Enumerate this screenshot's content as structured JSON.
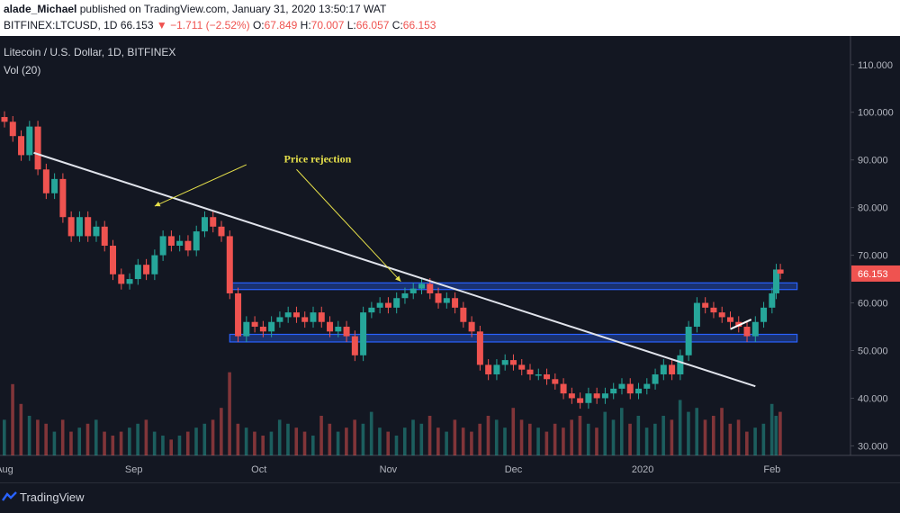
{
  "header": {
    "publisher": "alade_Michael",
    "published_text": "published on TradingView.com, January 31, 2020 13:50:17 WAT",
    "symbol": "BITFINEX:LTCUSD, 1D",
    "last": "66.153",
    "change_arrow": "▼",
    "change": "−1.711 (−2.52%)",
    "ohlc": [
      {
        "label": "O:",
        "value": "67.849"
      },
      {
        "label": "H:",
        "value": "70.007"
      },
      {
        "label": "L:",
        "value": "66.057"
      },
      {
        "label": "C:",
        "value": "66.153"
      }
    ]
  },
  "legend": {
    "title": "Litecoin / U.S. Dollar, 1D, BITFINEX",
    "volume": "Vol (20)"
  },
  "footer": {
    "brand": "TradingView"
  },
  "colors": {
    "up": "#26a69a",
    "down": "#ef5350",
    "zone_fill": "#2962ff",
    "trendline": "#e0e3eb",
    "annotation": "#e6e04a",
    "price_label_bg": "#ef5350"
  },
  "chart_data": {
    "type": "candlestick",
    "title": "Litecoin / U.S. Dollar, 1D, BITFINEX",
    "ylim": [
      28,
      116
    ],
    "y_ticks": [
      "110.000",
      "100.000",
      "90.000",
      "80.000",
      "70.000",
      "60.000",
      "50.000",
      "40.000",
      "30.000"
    ],
    "x_ticks": [
      "Aug",
      "Sep",
      "Oct",
      "Nov",
      "Dec",
      "2020",
      "Feb"
    ],
    "x_range_days": [
      0,
      187
    ],
    "x_tick_days": [
      0,
      31,
      61,
      92,
      122,
      153,
      184
    ],
    "last_price": "66.153",
    "series": [
      {
        "kind": "close",
        "points": [
          [
            0,
            98
          ],
          [
            2,
            95
          ],
          [
            4,
            91
          ],
          [
            6,
            97
          ],
          [
            8,
            88
          ],
          [
            10,
            83
          ],
          [
            12,
            86
          ],
          [
            14,
            78
          ],
          [
            16,
            74
          ],
          [
            18,
            78
          ],
          [
            20,
            74
          ],
          [
            22,
            76
          ],
          [
            24,
            72
          ],
          [
            26,
            66
          ],
          [
            28,
            64
          ],
          [
            30,
            65
          ],
          [
            32,
            68
          ],
          [
            34,
            66
          ],
          [
            36,
            70
          ],
          [
            38,
            74
          ],
          [
            40,
            72
          ],
          [
            42,
            73
          ],
          [
            44,
            71
          ],
          [
            46,
            75
          ],
          [
            48,
            78
          ],
          [
            50,
            76
          ],
          [
            52,
            74
          ],
          [
            54,
            62
          ],
          [
            56,
            53
          ],
          [
            58,
            56
          ],
          [
            60,
            55
          ],
          [
            62,
            54
          ],
          [
            64,
            56
          ],
          [
            66,
            57
          ],
          [
            68,
            58
          ],
          [
            70,
            57
          ],
          [
            72,
            56
          ],
          [
            74,
            58
          ],
          [
            76,
            56
          ],
          [
            78,
            54
          ],
          [
            80,
            55
          ],
          [
            82,
            53
          ],
          [
            84,
            49
          ],
          [
            86,
            58
          ],
          [
            88,
            59
          ],
          [
            90,
            60
          ],
          [
            92,
            59
          ],
          [
            94,
            61
          ],
          [
            96,
            62
          ],
          [
            98,
            63
          ],
          [
            100,
            64
          ],
          [
            102,
            62
          ],
          [
            104,
            60
          ],
          [
            106,
            61
          ],
          [
            108,
            59
          ],
          [
            110,
            56
          ],
          [
            112,
            54
          ],
          [
            114,
            47
          ],
          [
            116,
            45
          ],
          [
            118,
            47
          ],
          [
            120,
            48
          ],
          [
            122,
            47
          ],
          [
            124,
            46
          ],
          [
            126,
            45
          ],
          [
            128,
            45
          ],
          [
            130,
            44
          ],
          [
            132,
            43
          ],
          [
            134,
            41
          ],
          [
            136,
            40
          ],
          [
            138,
            39
          ],
          [
            140,
            41
          ],
          [
            142,
            40
          ],
          [
            144,
            41
          ],
          [
            146,
            42
          ],
          [
            148,
            43
          ],
          [
            150,
            41
          ],
          [
            152,
            42
          ],
          [
            154,
            43
          ],
          [
            156,
            45
          ],
          [
            158,
            47
          ],
          [
            160,
            45
          ],
          [
            162,
            49
          ],
          [
            164,
            55
          ],
          [
            166,
            60
          ],
          [
            168,
            59
          ],
          [
            170,
            58
          ],
          [
            172,
            57
          ],
          [
            174,
            56
          ],
          [
            176,
            55
          ],
          [
            178,
            53
          ],
          [
            180,
            56
          ],
          [
            182,
            59
          ],
          [
            184,
            62
          ],
          [
            185,
            67
          ],
          [
            186,
            66.153
          ]
        ]
      },
      {
        "kind": "volume",
        "values": [
          9,
          18,
          13,
          10,
          9,
          8,
          6,
          9,
          6,
          7,
          8,
          9,
          6,
          5,
          6,
          7,
          8,
          9,
          6,
          5,
          4,
          5,
          6,
          7,
          8,
          9,
          12,
          21,
          8,
          7,
          6,
          5,
          6,
          9,
          8,
          7,
          6,
          5,
          10,
          8,
          6,
          7,
          9,
          8,
          11,
          7,
          6,
          5,
          7,
          9,
          8,
          10,
          7,
          6,
          9,
          7,
          6,
          8,
          10,
          9,
          7,
          12,
          9,
          8,
          7,
          6,
          8,
          7,
          9,
          10,
          8,
          7,
          11,
          9,
          12,
          8,
          10,
          7,
          8,
          10,
          9,
          14,
          11,
          12,
          9,
          10,
          12,
          8,
          9,
          6,
          7,
          8,
          13,
          10,
          11
        ]
      }
    ],
    "zones": [
      {
        "low": 62.8,
        "high": 64.2
      },
      {
        "low": 51.8,
        "high": 53.4
      }
    ],
    "trendline": {
      "from": [
        7,
        91.5
      ],
      "to": [
        180,
        42.5
      ]
    },
    "annotations": [
      {
        "text": "Price rejection",
        "at": [
          67,
          89.5
        ]
      }
    ],
    "arrows": [
      {
        "from": [
          58,
          89
        ],
        "to": [
          36,
          80.3
        ]
      },
      {
        "from": [
          70,
          88
        ],
        "to": [
          95,
          64.5
        ]
      }
    ]
  }
}
